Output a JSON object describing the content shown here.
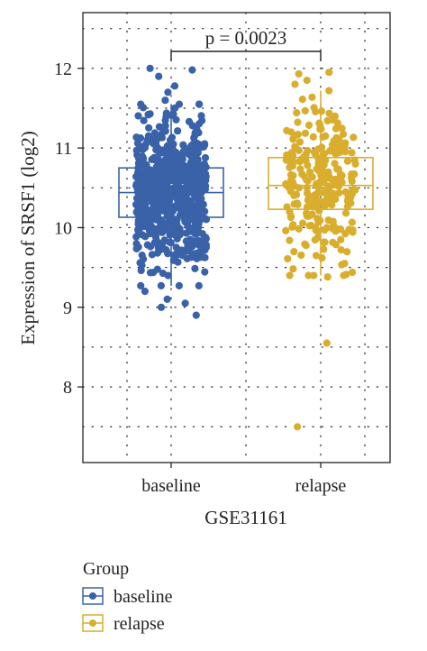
{
  "chart_data": {
    "type": "box",
    "ylabel": "Expression of SRSF1 (log2)",
    "xlabel": "GSE31161",
    "ylim": [
      7.05,
      12.7
    ],
    "yticks": [
      8,
      9,
      10,
      11,
      12
    ],
    "categories": [
      "baseline",
      "relapse"
    ],
    "grid": "dotted",
    "series": [
      {
        "name": "baseline",
        "color": "#3a62a8",
        "n_points": 700,
        "box": {
          "min": 9.27,
          "q1": 10.13,
          "median": 10.44,
          "q3": 10.75,
          "max": 11.55
        },
        "outliers": [
          8.9,
          9.0,
          9.05,
          9.1,
          9.2,
          11.6,
          11.7,
          11.78,
          11.9,
          12.0,
          11.98
        ]
      },
      {
        "name": "relapse",
        "color": "#d9ae2e",
        "n_points": 260,
        "box": {
          "min": 9.4,
          "q1": 10.23,
          "median": 10.53,
          "q3": 10.88,
          "max": 11.72
        },
        "outliers": [
          9.38,
          8.55,
          7.5,
          11.8,
          11.85,
          11.93,
          11.95
        ]
      }
    ],
    "annotation": {
      "text": "p = 0.0023",
      "between": [
        "baseline",
        "relapse"
      ]
    },
    "legend": {
      "title": "Group",
      "position": "bottom-left",
      "items": [
        "baseline",
        "relapse"
      ]
    }
  }
}
